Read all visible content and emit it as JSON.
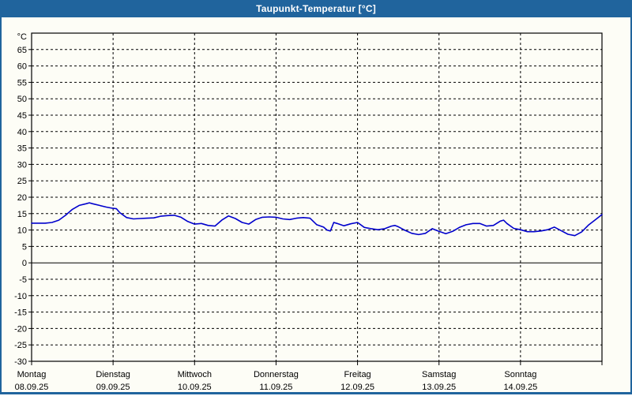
{
  "window": {
    "title": "Taupunkt-Temperatur [°C]",
    "titlebar_color": "#20649d",
    "background_color": "#fdfdf6"
  },
  "chart_data": {
    "type": "line",
    "title": "Taupunkt-Temperatur [°C]",
    "ylabel": "°C",
    "xlabel": "",
    "ylim": [
      -30,
      70
    ],
    "ytick_step": 5,
    "ytick_labels": [
      "65",
      "60",
      "55",
      "50",
      "45",
      "40",
      "35",
      "30",
      "25",
      "20",
      "15",
      "10",
      "5",
      "0",
      "-5",
      "-10",
      "-15",
      "-20",
      "-25",
      "-30"
    ],
    "grid": "dashed, horizontal every 5°C, vertical at day boundaries, solid line at 0",
    "legend_position": "none",
    "line_color": "#0000cc",
    "grid_color": "#000000",
    "x_unit": "hours from Monday 00:00",
    "xlim": [
      0,
      168
    ],
    "days": [
      {
        "name": "Montag",
        "date": "08.09.25"
      },
      {
        "name": "Dienstag",
        "date": "09.09.25"
      },
      {
        "name": "Mittwoch",
        "date": "10.09.25"
      },
      {
        "name": "Donnerstag",
        "date": "11.09.25"
      },
      {
        "name": "Freitag",
        "date": "12.09.25"
      },
      {
        "name": "Samstag",
        "date": "13.09.25"
      },
      {
        "name": "Sonntag",
        "date": "14.09.25"
      }
    ],
    "series": [
      {
        "name": "Taupunkt",
        "points": [
          [
            0,
            12.1
          ],
          [
            2,
            12.1
          ],
          [
            4,
            12.1
          ],
          [
            6,
            12.3
          ],
          [
            8,
            13.0
          ],
          [
            10,
            14.5
          ],
          [
            12,
            16.3
          ],
          [
            14,
            17.5
          ],
          [
            16,
            18.0
          ],
          [
            17,
            18.3
          ],
          [
            18,
            18.0
          ],
          [
            20,
            17.5
          ],
          [
            22,
            17.0
          ],
          [
            24,
            16.6
          ],
          [
            25,
            16.5
          ],
          [
            26,
            15.3
          ],
          [
            28,
            13.8
          ],
          [
            30,
            13.4
          ],
          [
            32,
            13.5
          ],
          [
            34,
            13.6
          ],
          [
            36,
            13.7
          ],
          [
            38,
            14.2
          ],
          [
            40,
            14.4
          ],
          [
            42,
            14.5
          ],
          [
            44,
            13.9
          ],
          [
            46,
            12.6
          ],
          [
            48,
            11.8
          ],
          [
            50,
            12.0
          ],
          [
            52,
            11.4
          ],
          [
            54,
            11.2
          ],
          [
            56,
            13.0
          ],
          [
            58,
            14.3
          ],
          [
            60,
            13.5
          ],
          [
            62,
            12.3
          ],
          [
            64,
            11.8
          ],
          [
            66,
            13.2
          ],
          [
            68,
            13.9
          ],
          [
            70,
            14.0
          ],
          [
            72,
            13.9
          ],
          [
            74,
            13.4
          ],
          [
            76,
            13.2
          ],
          [
            78,
            13.6
          ],
          [
            80,
            13.8
          ],
          [
            82,
            13.6
          ],
          [
            84,
            11.6
          ],
          [
            86,
            10.9
          ],
          [
            87,
            10.0
          ],
          [
            88,
            9.7
          ],
          [
            89,
            12.3
          ],
          [
            90,
            12.0
          ],
          [
            92,
            11.3
          ],
          [
            94,
            11.9
          ],
          [
            96,
            12.3
          ],
          [
            98,
            10.8
          ],
          [
            100,
            10.4
          ],
          [
            102,
            10.1
          ],
          [
            104,
            10.4
          ],
          [
            106,
            11.2
          ],
          [
            107,
            11.4
          ],
          [
            108,
            11.0
          ],
          [
            110,
            9.9
          ],
          [
            112,
            9.0
          ],
          [
            114,
            8.6
          ],
          [
            116,
            9.0
          ],
          [
            118,
            10.4
          ],
          [
            120,
            9.6
          ],
          [
            122,
            8.9
          ],
          [
            124,
            9.6
          ],
          [
            126,
            10.8
          ],
          [
            128,
            11.6
          ],
          [
            130,
            12.0
          ],
          [
            132,
            12.0
          ],
          [
            134,
            11.2
          ],
          [
            136,
            11.4
          ],
          [
            138,
            12.7
          ],
          [
            139,
            13.0
          ],
          [
            140,
            12.0
          ],
          [
            142,
            10.5
          ],
          [
            144,
            10.1
          ],
          [
            146,
            9.5
          ],
          [
            148,
            9.5
          ],
          [
            150,
            9.7
          ],
          [
            152,
            10.1
          ],
          [
            154,
            10.9
          ],
          [
            156,
            9.8
          ],
          [
            158,
            8.7
          ],
          [
            160,
            8.3
          ],
          [
            162,
            9.4
          ],
          [
            164,
            11.5
          ],
          [
            166,
            13.1
          ],
          [
            168,
            14.7
          ]
        ]
      }
    ]
  }
}
